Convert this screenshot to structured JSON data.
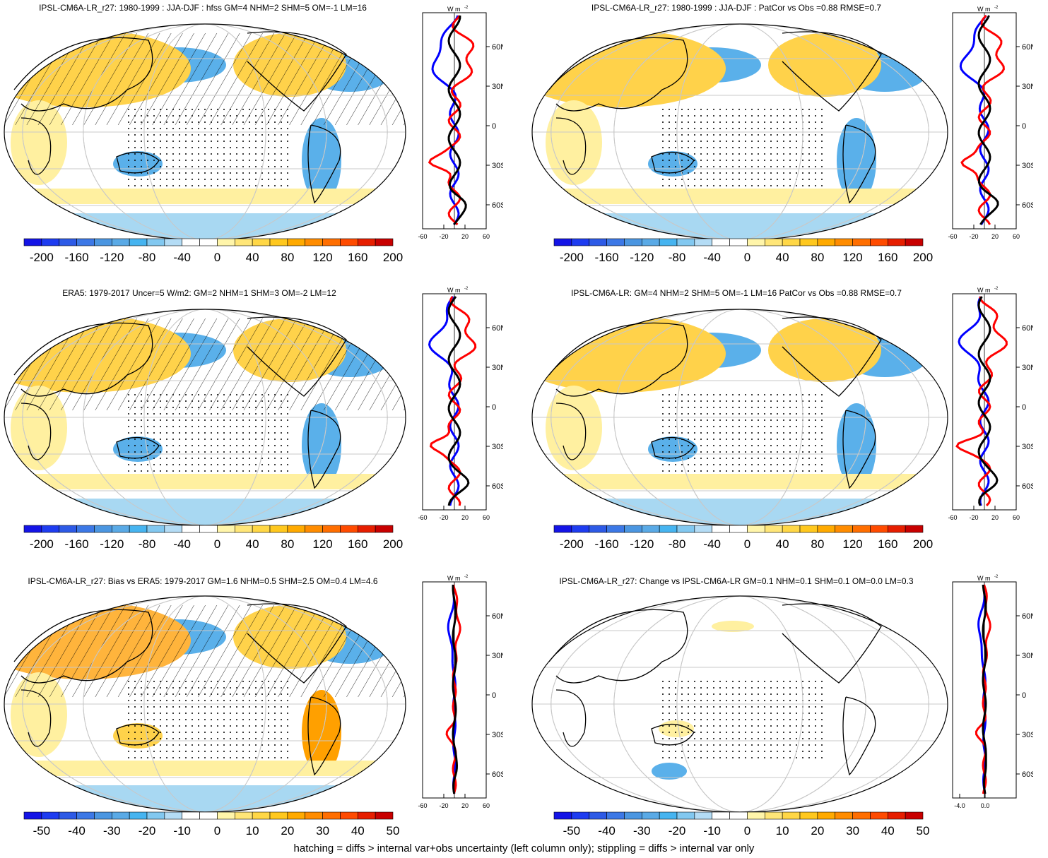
{
  "colorbar_colors": [
    "#1414e6",
    "#1e3cf0",
    "#2d5ae6",
    "#3c78e6",
    "#4b96e1",
    "#5aaae6",
    "#46b4f0",
    "#82c8f0",
    "#b4dcf5",
    "#ffffff",
    "#ffffff",
    "#fff5aa",
    "#ffe678",
    "#ffd746",
    "#ffc81e",
    "#ffaa00",
    "#ff8c00",
    "#ff6e00",
    "#ff4b00",
    "#e61e00",
    "#c80000"
  ],
  "colors": {
    "land_line": "#000000",
    "grid": "#c8c8c8",
    "profile_model": "#0000ff",
    "profile_obs": "#ff0000",
    "profile_diff": "#000000"
  },
  "lat_labels": [
    "60N",
    "30N",
    "0",
    "30S",
    "60S"
  ],
  "profile_unit": "W m",
  "profile_unit_exp": "-2",
  "panels": [
    {
      "id": "model-mean",
      "title": "IPSL-CM6A-LR_r27: 1980-1999 : JJA-DJF : hfss GM=4 NHM=2 SHM=5 OM=-1 LM=16",
      "colorbar_labels": [
        "-200",
        "-160",
        "-120",
        "-80",
        "-40",
        "0",
        "40",
        "80",
        "120",
        "160",
        "200"
      ],
      "profile_ticks": [
        "-60",
        "-20",
        "20",
        "60"
      ],
      "hatching": true
    },
    {
      "id": "model-patcor",
      "title": "IPSL-CM6A-LR_r27: 1980-1999 : JJA-DJF : PatCor vs Obs =0.88 RMSE=0.7",
      "colorbar_labels": [
        "-200",
        "-160",
        "-120",
        "-80",
        "-40",
        "0",
        "40",
        "80",
        "120",
        "160",
        "200"
      ],
      "profile_ticks": [
        "-60",
        "-20",
        "20",
        "60"
      ],
      "hatching": false
    },
    {
      "id": "era5",
      "title": "ERA5: 1979-2017 Uncer=5 W/m2: GM=2 NHM=1 SHM=3 OM=-2 LM=12",
      "colorbar_labels": [
        "-200",
        "-160",
        "-120",
        "-80",
        "-40",
        "0",
        "40",
        "80",
        "120",
        "160",
        "200"
      ],
      "profile_ticks": [
        "-60",
        "-20",
        "20",
        "60"
      ],
      "hatching": true
    },
    {
      "id": "ensemble",
      "title": "IPSL-CM6A-LR: GM=4 NHM=2 SHM=5 OM=-1 LM=16 PatCor vs Obs =0.88 RMSE=0.7",
      "colorbar_labels": [
        "-200",
        "-160",
        "-120",
        "-80",
        "-40",
        "0",
        "40",
        "80",
        "120",
        "160",
        "200"
      ],
      "profile_ticks": [
        "-60",
        "-20",
        "20",
        "60"
      ],
      "hatching": false
    },
    {
      "id": "bias",
      "title": "IPSL-CM6A-LR_r27: Bias vs ERA5: 1979-2017 GM=1.6 NHM=0.5 SHM=2.5 OM=0.4 LM=4.6",
      "colorbar_labels": [
        "-50",
        "-40",
        "-30",
        "-20",
        "-10",
        "0",
        "10",
        "20",
        "30",
        "40",
        "50"
      ],
      "profile_ticks": [
        "-60",
        "-20",
        "20",
        "60"
      ],
      "hatching": true
    },
    {
      "id": "change",
      "title": "IPSL-CM6A-LR_r27: Change vs IPSL-CM6A-LR GM=0.1 NHM=0.1 SHM=0.1 OM=0.0 LM=0.3",
      "colorbar_labels": [
        "-50",
        "-40",
        "-30",
        "-20",
        "-10",
        "0",
        "10",
        "20",
        "30",
        "40",
        "50"
      ],
      "profile_ticks": [
        "-4.0",
        "0.0"
      ],
      "hatching": false
    }
  ],
  "footer": "hatching = diffs > internal var+obs uncertainty (left column only); stippling = diffs > internal var only"
}
